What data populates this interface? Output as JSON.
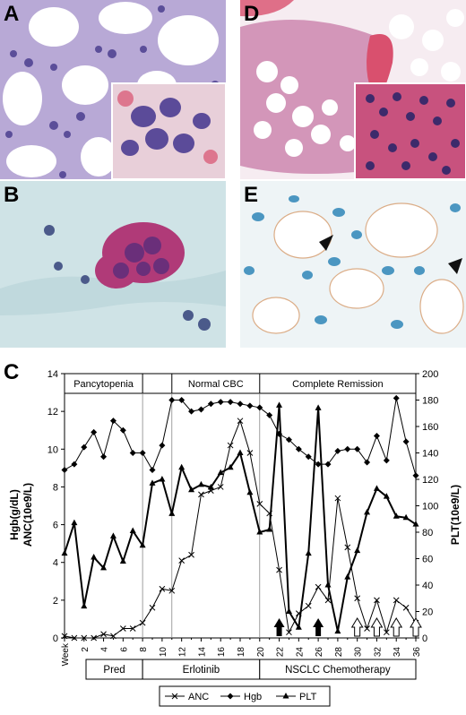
{
  "figure": {
    "panel_labels": {
      "a": "A",
      "b": "B",
      "c": "C",
      "d": "D",
      "e": "E"
    },
    "colors": {
      "he_background": "#f6ecf1",
      "he_nuclei": "#4b3f8f",
      "he_eosin": "#d9506e",
      "pap_background": "#cfe3e6",
      "pap_cells": "#b03a78",
      "ihc_background": "#eef4f6",
      "ihc_nuclei": "#2f86b8",
      "ihc_stain": "#c97a3a"
    }
  },
  "chart_data": {
    "type": "line",
    "left_axis_label": "Hgb(g/dL)\nANC(10e9/L)",
    "left_axis_label_lines": [
      "Hgb(g/dL)",
      "ANC(10e9/L)"
    ],
    "right_axis_label": "PLT(10e9/L)",
    "xlabel": "Week",
    "ylim_left": [
      0,
      14
    ],
    "ylim_right": [
      0,
      200
    ],
    "xlim": [
      0,
      36
    ],
    "left_ticks": [
      "0",
      "2",
      "4",
      "6",
      "8",
      "10",
      "12",
      "14"
    ],
    "right_ticks": [
      "0",
      "20",
      "40",
      "60",
      "80",
      "100",
      "120",
      "140",
      "160",
      "180",
      "200"
    ],
    "x_ticks": [
      "2",
      "4",
      "6",
      "8",
      "10",
      "12",
      "14",
      "16",
      "18",
      "20",
      "22",
      "24",
      "26",
      "28",
      "30",
      "32",
      "34",
      "36"
    ],
    "top_phases": [
      "Pancytopenia",
      "Normal CBC",
      "Complete Remission"
    ],
    "bottom_phases": [
      "Pred",
      "Erlotinib",
      "NSCLC Chemotherapy"
    ],
    "legend": [
      "ANC",
      "Hgb",
      "PLT"
    ],
    "series": [
      {
        "name": "ANC",
        "axis": "left",
        "marker": "x",
        "x": [
          0,
          1,
          2,
          3,
          4,
          5,
          6,
          7,
          8,
          9,
          10,
          11,
          12,
          13,
          14,
          15,
          16,
          17,
          18,
          19,
          20,
          21,
          22,
          23,
          24,
          25,
          26,
          27,
          28,
          29,
          30,
          31,
          32,
          33,
          34,
          35,
          36
        ],
        "values": [
          0.1,
          0,
          0,
          0,
          0.2,
          0.1,
          0.5,
          0.5,
          0.8,
          1.6,
          2.6,
          2.5,
          4.1,
          4.4,
          7.6,
          7.8,
          8.0,
          10.2,
          11.5,
          9.8,
          7.1,
          6.6,
          3.6,
          0.3,
          1.3,
          1.7,
          2.7,
          2.0,
          7.4,
          4.8,
          2.1,
          0.5,
          2.0,
          0.3,
          2.0,
          1.6,
          0.8
        ]
      },
      {
        "name": "Hgb",
        "axis": "left",
        "marker": "diamond",
        "x": [
          0,
          1,
          2,
          3,
          4,
          5,
          6,
          7,
          8,
          9,
          10,
          11,
          12,
          13,
          14,
          15,
          16,
          17,
          18,
          19,
          20,
          21,
          22,
          23,
          24,
          25,
          26,
          27,
          28,
          29,
          30,
          31,
          32,
          33,
          34,
          35,
          36
        ],
        "values": [
          8.9,
          9.2,
          10.1,
          10.9,
          9.6,
          11.5,
          11.0,
          9.8,
          9.8,
          8.9,
          10.2,
          12.6,
          12.6,
          12.0,
          12.1,
          12.4,
          12.5,
          12.5,
          12.4,
          12.3,
          12.2,
          11.8,
          10.8,
          10.5,
          10.0,
          9.6,
          9.2,
          9.2,
          9.9,
          10.0,
          10.0,
          9.3,
          10.7,
          9.4,
          12.7,
          10.4,
          8.6
        ]
      },
      {
        "name": "PLT",
        "axis": "right",
        "marker": "triangle",
        "x": [
          0,
          1,
          2,
          3,
          4,
          5,
          6,
          7,
          8,
          9,
          10,
          11,
          12,
          13,
          14,
          15,
          16,
          17,
          18,
          19,
          20,
          21,
          22,
          23,
          24,
          25,
          26,
          27,
          28,
          29,
          30,
          31,
          32,
          33,
          34,
          35,
          36
        ],
        "values": [
          64,
          87,
          24,
          61,
          53,
          77,
          58,
          81,
          70,
          117,
          120,
          94,
          129,
          112,
          116,
          114,
          125,
          129,
          140,
          110,
          80,
          82,
          176,
          20,
          8,
          64,
          174,
          40,
          5,
          46,
          66,
          95,
          113,
          107,
          92,
          91,
          86
        ]
      }
    ],
    "solid_arrow_weeks": [
      22,
      26
    ],
    "open_arrow_weeks": [
      30,
      32,
      34,
      36
    ],
    "phase_dividers_top": [
      8,
      11,
      20
    ],
    "phase_dividers_bottom": [
      8,
      20
    ]
  }
}
